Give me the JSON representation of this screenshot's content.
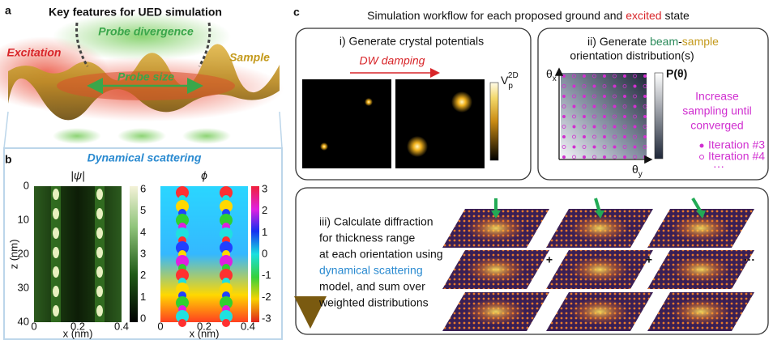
{
  "panel_a": {
    "label": "a",
    "title": "Key features for UED simulation",
    "probe_divergence": "Probe divergence",
    "excitation": "Excitation",
    "sample": "Sample",
    "probe_size": "Probe size"
  },
  "panel_b": {
    "label": "b",
    "title": "Dynamical scattering",
    "left_plot": {
      "title": "|ψ|",
      "y_label": "z (nm)",
      "y_ticks": [
        "0",
        "10",
        "20",
        "30",
        "40"
      ],
      "x_ticks": [
        "0",
        "0.2",
        "0.4"
      ],
      "x_label": "x (nm)",
      "colorbar_ticks": [
        "6",
        "5",
        "4",
        "3",
        "2",
        "1",
        "0"
      ]
    },
    "right_plot": {
      "title": "ϕ",
      "x_ticks": [
        "0",
        "0.2",
        "0.4"
      ],
      "x_label": "x (nm)",
      "colorbar_ticks": [
        "3",
        "2",
        "1",
        "0",
        "-1",
        "-2",
        "-3"
      ]
    }
  },
  "panel_c": {
    "label": "c",
    "title": [
      "Simulation workflow for each proposed ground and ",
      "excited",
      " state"
    ],
    "box_i": {
      "title": "i) Generate crystal potentials",
      "arrow_label": "DW damping",
      "colorbar_label": [
        "V",
        "p",
        "2D"
      ]
    },
    "box_ii": {
      "title_line1": [
        "ii) Generate ",
        "beam",
        "-",
        "sample"
      ],
      "title_line2": "orientation distribution(s)",
      "y_axis": [
        "θ",
        "x"
      ],
      "x_axis": [
        "θ",
        "y"
      ],
      "colorbar_label": "P(θ)",
      "note": [
        "Increase",
        "sampling until",
        "converged"
      ],
      "legend": [
        "Iteration #3",
        "Iteration #4"
      ],
      "more": "⋯"
    },
    "box_iii": {
      "text": [
        "iii) Calculate diffraction",
        "for thickness range",
        "at each orientation using",
        "dynamical scattering",
        "model, and sum over",
        "weighted distributions"
      ],
      "plus": "+",
      "more": "···"
    }
  }
}
